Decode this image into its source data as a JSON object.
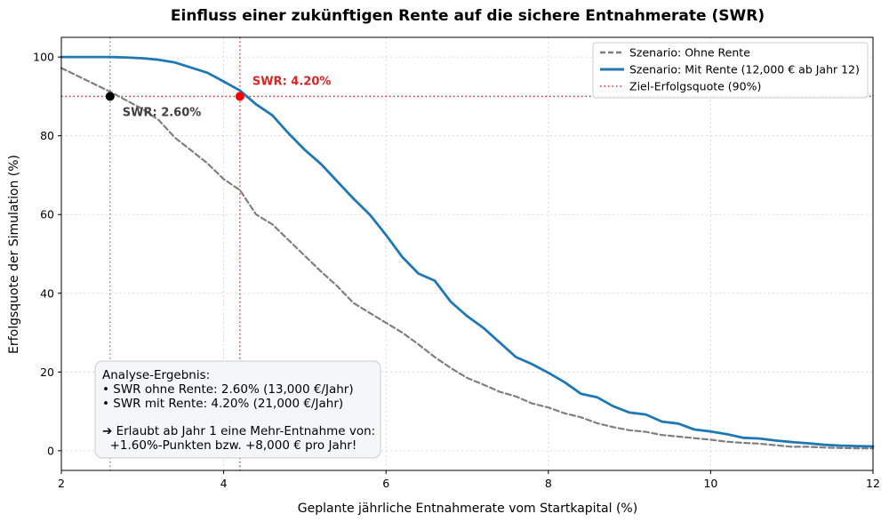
{
  "chart_data": {
    "type": "line",
    "title": "Einfluss einer zukünftigen Rente auf die sichere Entnahmerate (SWR)",
    "xlabel": "Geplante jährliche Entnahmerate vom Startkapital (%)",
    "ylabel": "Erfolgsquote der Simulation (%)",
    "xlim": [
      2,
      12
    ],
    "ylim": [
      -5,
      105
    ],
    "xticks": [
      2,
      4,
      6,
      8,
      10,
      12
    ],
    "yticks": [
      0,
      20,
      40,
      60,
      80,
      100
    ],
    "grid": true,
    "legend_position": "top-right",
    "series": [
      {
        "name": "Szenario: Ohne Rente",
        "color": "#7f7f7f",
        "style": "dashed",
        "x": [
          2.0,
          2.2,
          2.4,
          2.6,
          2.8,
          3.0,
          3.2,
          3.4,
          3.6,
          3.8,
          4.0,
          4.2,
          4.4,
          4.6,
          4.8,
          5.0,
          5.2,
          5.4,
          5.6,
          5.8,
          6.0,
          6.2,
          6.4,
          6.6,
          6.8,
          7.0,
          7.2,
          7.4,
          7.6,
          7.8,
          8.0,
          8.2,
          8.4,
          8.6,
          8.8,
          9.0,
          9.2,
          9.4,
          9.6,
          9.8,
          10.0,
          10.2,
          10.4,
          10.6,
          10.8,
          11.0,
          11.2,
          11.4,
          11.6,
          11.8,
          12.0
        ],
        "y": [
          97.2,
          95.2,
          93.2,
          91.2,
          89.0,
          86.8,
          84.0,
          79.5,
          76.3,
          73.0,
          69.0,
          66.2,
          60.0,
          57.5,
          53.5,
          49.5,
          45.5,
          41.8,
          37.5,
          35.0,
          32.5,
          30.0,
          27.0,
          23.8,
          21.0,
          18.5,
          16.8,
          15.0,
          13.8,
          12.0,
          11.0,
          9.5,
          8.5,
          7.0,
          6.0,
          5.2,
          4.8,
          4.0,
          3.6,
          3.2,
          2.8,
          2.3,
          2.0,
          1.8,
          1.4,
          1.0,
          1.0,
          0.8,
          0.7,
          0.6,
          0.6
        ]
      },
      {
        "name": "Szenario: Mit Rente (12,000 € ab Jahr 12)",
        "color": "#1f77b4",
        "style": "solid",
        "x": [
          2.0,
          2.2,
          2.4,
          2.6,
          2.8,
          3.0,
          3.2,
          3.4,
          3.6,
          3.8,
          4.0,
          4.2,
          4.4,
          4.6,
          4.8,
          5.0,
          5.2,
          5.4,
          5.6,
          5.8,
          6.0,
          6.2,
          6.4,
          6.6,
          6.8,
          7.0,
          7.2,
          7.4,
          7.6,
          7.8,
          8.0,
          8.2,
          8.4,
          8.6,
          8.8,
          9.0,
          9.2,
          9.4,
          9.6,
          9.8,
          10.0,
          10.2,
          10.4,
          10.6,
          10.8,
          11.0,
          11.2,
          11.4,
          11.6,
          11.8,
          12.0
        ],
        "y": [
          100,
          100,
          100,
          100,
          99.9,
          99.7,
          99.3,
          98.6,
          97.3,
          96.0,
          93.8,
          91.5,
          88.0,
          85.2,
          80.6,
          76.4,
          72.8,
          68.4,
          64.0,
          60.0,
          54.8,
          49.2,
          45.0,
          43.2,
          37.8,
          34.2,
          31.2,
          27.5,
          23.8,
          22.0,
          19.8,
          17.4,
          14.5,
          13.6,
          11.3,
          9.7,
          9.2,
          7.4,
          6.9,
          5.4,
          4.9,
          4.2,
          3.3,
          3.1,
          2.6,
          2.2,
          1.9,
          1.5,
          1.3,
          1.2,
          1.1
        ]
      },
      {
        "name": "Ziel-Erfolgsquote (90%)",
        "color": "#d62728",
        "style": "dotted",
        "y_constant": 90
      }
    ],
    "swr_points": [
      {
        "x": 2.6,
        "y": 90,
        "label": "SWR: 2.60%",
        "color": "#000000",
        "label_color": "#404040",
        "line_color": "#7f7f7f"
      },
      {
        "x": 4.2,
        "y": 90,
        "label": "SWR: 4.20%",
        "color": "#ff0000",
        "label_color": "#d62728",
        "line_color": "#d62728"
      }
    ],
    "annotation_box": {
      "lines": [
        "Analyse-Ergebnis:",
        "• SWR ohne Rente: 2.60% (13,000 €/Jahr)",
        "• SWR mit Rente: 4.20% (21,000 €/Jahr)",
        "",
        "➔ Erlaubt ab Jahr 1 eine Mehr-Entnahme von:",
        "  +1.60%-Punkten bzw. +8,000 € pro Jahr!"
      ]
    }
  }
}
